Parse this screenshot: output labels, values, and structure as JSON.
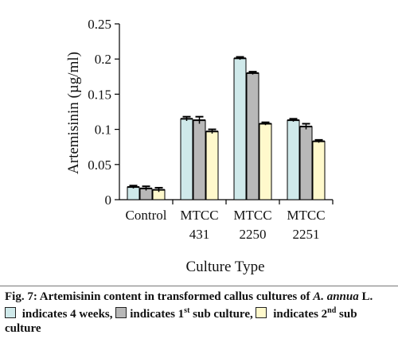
{
  "caption": {
    "fig_label": "Fig. 7:",
    "fig_text": " Artemisinin content in transformed callus cultures of ",
    "species": "A. annua",
    "species_suffix": " L.",
    "legend_items": [
      {
        "prefix": "indicates 4 weeks",
        "sup": "",
        "suffix": ",",
        "color": "#cfe9ea"
      },
      {
        "prefix": "indicates 1",
        "sup": "st",
        "suffix": " sub culture,",
        "color": "#b8b8b8"
      },
      {
        "prefix": "indicates 2",
        "sup": "nd",
        "suffix": " sub culture",
        "color": "#fff9cc"
      }
    ]
  },
  "chart_data": {
    "type": "bar",
    "xlabel": "Culture Type",
    "ylabel": "Artemisinin (µg/ml)",
    "ylim": [
      0,
      0.25
    ],
    "yticks": [
      "0",
      "0.05",
      "0.1",
      "0.15",
      "0.2",
      "0.25"
    ],
    "ytick_values": [
      0,
      0.05,
      0.1,
      0.15,
      0.2,
      0.25
    ],
    "grid": false,
    "categories": [
      {
        "line1": "Control",
        "line2": ""
      },
      {
        "line1": "MTCC",
        "line2": "431"
      },
      {
        "line1": "MTCC",
        "line2": "2250"
      },
      {
        "line1": "MTCC",
        "line2": "2251"
      }
    ],
    "series": [
      {
        "color": "#cfe9ea",
        "values": [
          0.018,
          0.115,
          0.201,
          0.113
        ],
        "errors": [
          0.002,
          0.003,
          0.002,
          0.002
        ]
      },
      {
        "color": "#b8b8b8",
        "values": [
          0.016,
          0.113,
          0.18,
          0.104
        ],
        "errors": [
          0.003,
          0.005,
          0.002,
          0.004
        ]
      },
      {
        "color": "#fff9cc",
        "values": [
          0.014,
          0.097,
          0.108,
          0.083
        ],
        "errors": [
          0.003,
          0.003,
          0.002,
          0.002
        ]
      }
    ]
  }
}
